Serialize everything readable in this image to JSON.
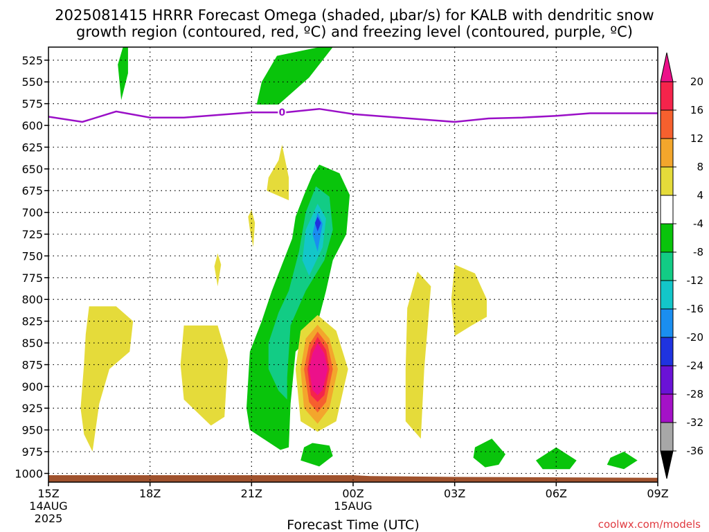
{
  "chart_data": {
    "type": "heatmap",
    "title_line1": "2025081415 HRRR Forecast Omega (shaded, μbar/s) for KALB with dendritic snow",
    "title_line2": "growth region (contoured, red, ºC) and freezing level (contoured, purple, ºC)",
    "xlabel": "Forecast Time (UTC)",
    "credit": "coolwx.com/models",
    "y_axis": {
      "unit": "hPa",
      "inverted": true,
      "range": [
        510,
        1010
      ],
      "ticks": [
        525,
        550,
        575,
        600,
        625,
        650,
        675,
        700,
        725,
        750,
        775,
        800,
        825,
        850,
        875,
        900,
        925,
        950,
        975,
        1000
      ]
    },
    "x_axis": {
      "unit": "hours after 2025-08-14 15Z",
      "range": [
        0,
        18
      ],
      "ticks": [
        {
          "h": 0,
          "label": "15Z",
          "sub1": "14AUG",
          "sub2": "2025"
        },
        {
          "h": 3,
          "label": "18Z",
          "sub1": "",
          "sub2": ""
        },
        {
          "h": 6,
          "label": "21Z",
          "sub1": "",
          "sub2": ""
        },
        {
          "h": 9,
          "label": "00Z",
          "sub1": "15AUG",
          "sub2": ""
        },
        {
          "h": 12,
          "label": "03Z",
          "sub1": "",
          "sub2": ""
        },
        {
          "h": 15,
          "label": "06Z",
          "sub1": "",
          "sub2": ""
        },
        {
          "h": 18,
          "label": "09Z",
          "sub1": "",
          "sub2": ""
        }
      ]
    },
    "grid": true,
    "colorbar": {
      "labels": [
        "20",
        "16",
        "12",
        "8",
        "4",
        "-4",
        "-8",
        "-12",
        "-16",
        "-20",
        "-24",
        "-28",
        "-32",
        "-36"
      ],
      "bins": [
        {
          "lo": 16,
          "hi": 20,
          "color": "#f5244b"
        },
        {
          "lo": 12,
          "hi": 16,
          "color": "#f6602e"
        },
        {
          "lo": 8,
          "hi": 12,
          "color": "#f3a62c"
        },
        {
          "lo": 4,
          "hi": 8,
          "color": "#e5db3a"
        },
        {
          "lo": -4,
          "hi": 4,
          "color": "#ffffff"
        },
        {
          "lo": -8,
          "hi": -4,
          "color": "#09c40b"
        },
        {
          "lo": -12,
          "hi": -8,
          "color": "#12cc85"
        },
        {
          "lo": -16,
          "hi": -12,
          "color": "#13c6c9"
        },
        {
          "lo": -20,
          "hi": -16,
          "color": "#1a8ef0"
        },
        {
          "lo": -24,
          "hi": -20,
          "color": "#1f33e0"
        },
        {
          "lo": -28,
          "hi": -24,
          "color": "#6a12d6"
        },
        {
          "lo": -32,
          "hi": -28,
          "color": "#a411c7"
        },
        {
          "lo": -36,
          "hi": -32,
          "color": "#a7a7a7"
        }
      ],
      "over_color": "#ec108a",
      "under_color": "#000000"
    },
    "freezing_level": {
      "color": "#9a0fc7",
      "label": "0",
      "label_h": 6.9,
      "points": [
        [
          0,
          590
        ],
        [
          1,
          596
        ],
        [
          2,
          584
        ],
        [
          3,
          591
        ],
        [
          4,
          591
        ],
        [
          5,
          588
        ],
        [
          6,
          585
        ],
        [
          7,
          585
        ],
        [
          8,
          581
        ],
        [
          9,
          587
        ],
        [
          10,
          590
        ],
        [
          11,
          593
        ],
        [
          12,
          596
        ],
        [
          13,
          592
        ],
        [
          14,
          591
        ],
        [
          15,
          589
        ],
        [
          16,
          586
        ],
        [
          17,
          586
        ],
        [
          18,
          586
        ]
      ]
    },
    "terrain_color": "#a0522d",
    "omega_features": [
      {
        "color": "#09c40b",
        "points": [
          [
            2.2,
            510
          ],
          [
            2.35,
            510
          ],
          [
            2.35,
            540
          ],
          [
            2.15,
            571
          ],
          [
            2.05,
            530
          ]
        ]
      },
      {
        "color": "#09c40b",
        "points": [
          [
            8.0,
            510
          ],
          [
            8.4,
            510
          ],
          [
            7.7,
            545
          ],
          [
            6.8,
            576
          ],
          [
            6.15,
            576
          ],
          [
            6.3,
            550
          ],
          [
            6.75,
            520
          ]
        ]
      },
      {
        "color": "#e5db3a",
        "points": [
          [
            6.9,
            622
          ],
          [
            7.1,
            660
          ],
          [
            7.1,
            686
          ],
          [
            6.45,
            675
          ],
          [
            6.5,
            660
          ],
          [
            6.8,
            640
          ]
        ]
      },
      {
        "color": "#e5db3a",
        "points": [
          [
            6.0,
            697
          ],
          [
            6.1,
            712
          ],
          [
            6.05,
            740
          ],
          [
            5.95,
            720
          ],
          [
            5.9,
            705
          ]
        ]
      },
      {
        "color": "#e5db3a",
        "points": [
          [
            5.0,
            747
          ],
          [
            5.1,
            760
          ],
          [
            5.0,
            785
          ],
          [
            4.9,
            762
          ]
        ]
      },
      {
        "color": "#09c40b",
        "points": [
          [
            8.0,
            645
          ],
          [
            8.6,
            655
          ],
          [
            8.9,
            680
          ],
          [
            8.8,
            725
          ],
          [
            8.4,
            755
          ],
          [
            8.2,
            790
          ],
          [
            8.0,
            820
          ],
          [
            7.55,
            850
          ],
          [
            7.3,
            860
          ],
          [
            7.15,
            920
          ],
          [
            7.1,
            970
          ],
          [
            6.85,
            973
          ],
          [
            5.95,
            950
          ],
          [
            5.85,
            925
          ],
          [
            5.95,
            860
          ],
          [
            6.3,
            825
          ],
          [
            6.6,
            790
          ],
          [
            6.9,
            760
          ],
          [
            7.2,
            730
          ],
          [
            7.3,
            705
          ],
          [
            7.55,
            680
          ],
          [
            7.8,
            657
          ]
        ]
      },
      {
        "color": "#12cc85",
        "points": [
          [
            7.9,
            670
          ],
          [
            8.3,
            682
          ],
          [
            8.4,
            720
          ],
          [
            8.15,
            755
          ],
          [
            7.6,
            790
          ],
          [
            7.15,
            830
          ],
          [
            7.05,
            890
          ],
          [
            7.05,
            915
          ],
          [
            6.8,
            905
          ],
          [
            6.5,
            880
          ],
          [
            6.5,
            850
          ],
          [
            6.8,
            815
          ],
          [
            7.1,
            790
          ],
          [
            7.4,
            745
          ],
          [
            7.6,
            700
          ]
        ]
      },
      {
        "color": "#13c6c9",
        "points": [
          [
            7.95,
            690
          ],
          [
            8.2,
            707
          ],
          [
            8.1,
            740
          ],
          [
            7.7,
            773
          ],
          [
            7.5,
            755
          ],
          [
            7.6,
            720
          ]
        ]
      },
      {
        "color": "#1a8ef0",
        "points": [
          [
            7.95,
            700
          ],
          [
            8.1,
            713
          ],
          [
            7.95,
            745
          ],
          [
            7.8,
            725
          ]
        ]
      },
      {
        "color": "#1f33e0",
        "points": [
          [
            7.95,
            705
          ],
          [
            8.05,
            712
          ],
          [
            7.95,
            722
          ],
          [
            7.87,
            712
          ]
        ]
      },
      {
        "color": "#e5db3a",
        "points": [
          [
            7.95,
            818
          ],
          [
            8.5,
            836
          ],
          [
            8.85,
            880
          ],
          [
            8.5,
            940
          ],
          [
            7.95,
            952
          ],
          [
            7.45,
            940
          ],
          [
            7.3,
            880
          ],
          [
            7.45,
            836
          ]
        ]
      },
      {
        "color": "#f3a62c",
        "points": [
          [
            7.95,
            829
          ],
          [
            8.3,
            845
          ],
          [
            8.55,
            880
          ],
          [
            8.3,
            925
          ],
          [
            7.95,
            943
          ],
          [
            7.55,
            925
          ],
          [
            7.45,
            880
          ],
          [
            7.6,
            845
          ]
        ]
      },
      {
        "color": "#f6602e",
        "points": [
          [
            7.95,
            837
          ],
          [
            8.25,
            852
          ],
          [
            8.4,
            880
          ],
          [
            8.2,
            918
          ],
          [
            7.95,
            930
          ],
          [
            7.7,
            918
          ],
          [
            7.55,
            880
          ],
          [
            7.7,
            852
          ]
        ]
      },
      {
        "color": "#f5244b",
        "points": [
          [
            7.95,
            843
          ],
          [
            8.2,
            858
          ],
          [
            8.3,
            880
          ],
          [
            8.15,
            910
          ],
          [
            7.95,
            918
          ],
          [
            7.75,
            910
          ],
          [
            7.65,
            880
          ],
          [
            7.75,
            858
          ]
        ]
      },
      {
        "color": "#ec108a",
        "points": [
          [
            7.95,
            850
          ],
          [
            8.15,
            862
          ],
          [
            8.25,
            880
          ],
          [
            8.1,
            904
          ],
          [
            7.95,
            910
          ],
          [
            7.8,
            904
          ],
          [
            7.7,
            880
          ],
          [
            7.8,
            862
          ]
        ]
      },
      {
        "color": "#e5db3a",
        "points": [
          [
            1.2,
            808
          ],
          [
            2.0,
            808
          ],
          [
            2.5,
            825
          ],
          [
            2.4,
            860
          ],
          [
            1.8,
            880
          ],
          [
            1.5,
            920
          ],
          [
            1.3,
            975
          ],
          [
            1.05,
            955
          ],
          [
            0.95,
            925
          ],
          [
            1.05,
            875
          ],
          [
            1.1,
            840
          ]
        ]
      },
      {
        "color": "#e5db3a",
        "points": [
          [
            4.0,
            830
          ],
          [
            5.0,
            830
          ],
          [
            5.3,
            870
          ],
          [
            5.2,
            935
          ],
          [
            4.8,
            945
          ],
          [
            4.0,
            915
          ],
          [
            3.9,
            875
          ]
        ]
      },
      {
        "color": "#e5db3a",
        "points": [
          [
            10.9,
            768
          ],
          [
            11.3,
            785
          ],
          [
            11.1,
            880
          ],
          [
            11.0,
            960
          ],
          [
            10.55,
            940
          ],
          [
            10.55,
            880
          ],
          [
            10.6,
            810
          ]
        ]
      },
      {
        "color": "#e5db3a",
        "points": [
          [
            12.0,
            760
          ],
          [
            12.6,
            770
          ],
          [
            12.95,
            800
          ],
          [
            12.95,
            820
          ],
          [
            12.5,
            830
          ],
          [
            12.0,
            842
          ],
          [
            11.9,
            800
          ]
        ]
      },
      {
        "color": "#09c40b",
        "points": [
          [
            7.8,
            965
          ],
          [
            8.3,
            968
          ],
          [
            8.4,
            980
          ],
          [
            8.0,
            992
          ],
          [
            7.45,
            985
          ],
          [
            7.55,
            970
          ]
        ]
      },
      {
        "color": "#09c40b",
        "points": [
          [
            13.1,
            960
          ],
          [
            13.5,
            978
          ],
          [
            13.3,
            990
          ],
          [
            12.9,
            993
          ],
          [
            12.55,
            982
          ],
          [
            12.6,
            970
          ]
        ]
      },
      {
        "color": "#09c40b",
        "points": [
          [
            15.0,
            970
          ],
          [
            15.6,
            985
          ],
          [
            15.4,
            995
          ],
          [
            14.6,
            995
          ],
          [
            14.4,
            985
          ]
        ]
      },
      {
        "color": "#09c40b",
        "points": [
          [
            17.0,
            975
          ],
          [
            17.4,
            985
          ],
          [
            17.0,
            995
          ],
          [
            16.5,
            990
          ],
          [
            16.6,
            982
          ]
        ]
      }
    ]
  }
}
